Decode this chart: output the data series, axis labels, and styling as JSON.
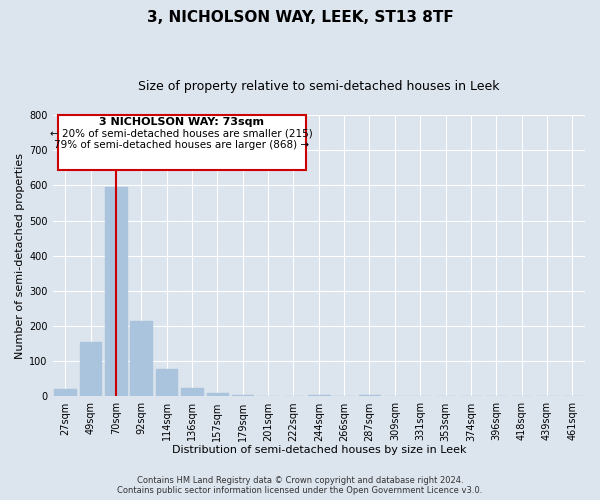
{
  "title": "3, NICHOLSON WAY, LEEK, ST13 8TF",
  "subtitle": "Size of property relative to semi-detached houses in Leek",
  "xlabel": "Distribution of semi-detached houses by size in Leek",
  "ylabel": "Number of semi-detached properties",
  "footer_lines": [
    "Contains HM Land Registry data © Crown copyright and database right 2024.",
    "Contains public sector information licensed under the Open Government Licence v3.0."
  ],
  "bar_labels": [
    "27sqm",
    "49sqm",
    "70sqm",
    "92sqm",
    "114sqm",
    "136sqm",
    "157sqm",
    "179sqm",
    "201sqm",
    "222sqm",
    "244sqm",
    "266sqm",
    "287sqm",
    "309sqm",
    "331sqm",
    "353sqm",
    "374sqm",
    "396sqm",
    "418sqm",
    "439sqm",
    "461sqm"
  ],
  "bar_values": [
    20,
    155,
    595,
    215,
    78,
    25,
    10,
    5,
    0,
    0,
    5,
    0,
    5,
    0,
    0,
    0,
    0,
    0,
    0,
    0,
    0
  ],
  "bar_color": "#aac4de",
  "marker_index": 2,
  "marker_color": "#cc0000",
  "annotation_title": "3 NICHOLSON WAY: 73sqm",
  "annotation_line1": "← 20% of semi-detached houses are smaller (215)",
  "annotation_line2": "79% of semi-detached houses are larger (868) →",
  "annotation_box_color": "#ffffff",
  "annotation_box_edge": "#cc0000",
  "ylim": [
    0,
    800
  ],
  "yticks": [
    0,
    100,
    200,
    300,
    400,
    500,
    600,
    700,
    800
  ],
  "background_color": "#dce4ee",
  "plot_background": "#dce4ee",
  "title_fontsize": 11,
  "subtitle_fontsize": 9,
  "axis_label_fontsize": 8,
  "tick_fontsize": 7,
  "footer_fontsize": 6
}
